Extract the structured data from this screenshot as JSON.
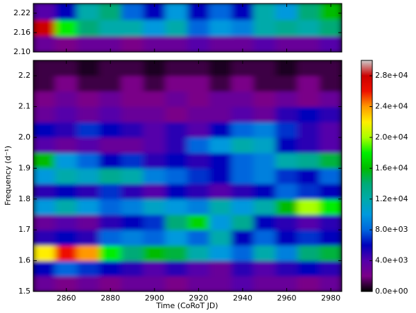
{
  "chart_data": {
    "type": "heatmap",
    "xlabel": "Time (CoRoT JD)",
    "ylabel": "Frequency (d⁻¹)",
    "x": [
      2850,
      2860,
      2870,
      2880,
      2890,
      2900,
      2910,
      2920,
      2930,
      2940,
      2950,
      2960,
      2970,
      2980
    ],
    "xlim": [
      2845,
      2985
    ],
    "xticks": [
      2860,
      2880,
      2900,
      2920,
      2940,
      2960,
      2980
    ],
    "colormap": [
      "#000000",
      "#7a0088",
      "#5500aa",
      "#0000bb",
      "#0066dd",
      "#0099dd",
      "#00aaaa",
      "#00aa77",
      "#00bb00",
      "#00ee00",
      "#aaff00",
      "#ffee00",
      "#ff9900",
      "#ee1100",
      "#cc0000",
      "#cccccc"
    ],
    "clim": [
      0,
      30000
    ],
    "cticks": [
      {
        "value": 0,
        "label": "0.0e+00"
      },
      {
        "value": 4000,
        "label": "4.0e+03"
      },
      {
        "value": 8000,
        "label": "8.0e+03"
      },
      {
        "value": 12000,
        "label": "1.2e+04"
      },
      {
        "value": 16000,
        "label": "1.6e+04"
      },
      {
        "value": 20000,
        "label": "2.0e+04"
      },
      {
        "value": 24000,
        "label": "2.4e+04"
      },
      {
        "value": 28000,
        "label": "2.8e+04"
      }
    ],
    "panels": [
      {
        "ylim": [
          2.1,
          2.25
        ],
        "yticks": [
          {
            "value": 2.1,
            "label": "2.10"
          },
          2.16,
          2.22
        ],
        "y": [
          2.125,
          2.175,
          2.225
        ],
        "values": [
          [
            3000,
            2000,
            3000,
            3000,
            2000,
            3000,
            3000,
            4000,
            3000,
            3000,
            4000,
            3000,
            3000,
            4000
          ],
          [
            28000,
            18000,
            14000,
            12000,
            12000,
            10000,
            12000,
            8000,
            10000,
            9000,
            12000,
            13000,
            12000,
            14000
          ],
          [
            4000,
            6000,
            12000,
            14000,
            8000,
            6000,
            10000,
            6000,
            8000,
            6000,
            12000,
            10000,
            14000,
            16000
          ]
        ]
      },
      {
        "ylim": [
          1.5,
          2.25
        ],
        "yticks": [
          1.5,
          1.6,
          1.7,
          1.8,
          1.9,
          {
            "value": 2,
            "label": "2.0"
          },
          2.1,
          2.2
        ],
        "y": [
          1.525,
          1.575,
          1.625,
          1.675,
          1.725,
          1.775,
          1.825,
          1.875,
          1.925,
          1.975,
          2.025,
          2.075,
          2.125,
          2.175,
          2.225
        ],
        "values": [
          [
            3000,
            2000,
            3000,
            2000,
            3000,
            3000,
            2000,
            3000,
            3000,
            4000,
            3000,
            3000,
            2000,
            3000
          ],
          [
            6000,
            8000,
            7000,
            6000,
            5000,
            4000,
            5000,
            4000,
            3000,
            5000,
            4000,
            5000,
            6000,
            5000
          ],
          [
            22000,
            26000,
            24000,
            18000,
            14000,
            16000,
            15000,
            12000,
            10000,
            8000,
            12000,
            9000,
            14000,
            15000
          ],
          [
            5000,
            6000,
            5000,
            8000,
            9000,
            8000,
            10000,
            8000,
            12000,
            6000,
            8000,
            6000,
            7000,
            6000
          ],
          [
            3000,
            4000,
            3000,
            5000,
            6000,
            7000,
            14000,
            17000,
            10000,
            13000,
            6000,
            5000,
            4000,
            5000
          ],
          [
            10000,
            12000,
            10000,
            8000,
            9000,
            11000,
            10000,
            9000,
            12000,
            10000,
            12000,
            16000,
            20000,
            18000
          ],
          [
            5000,
            6000,
            5000,
            7000,
            5000,
            4000,
            6000,
            5000,
            4000,
            5000,
            6000,
            8000,
            7000,
            6000
          ],
          [
            10000,
            12000,
            11000,
            13000,
            12000,
            9000,
            8000,
            7000,
            6000,
            8000,
            9000,
            7000,
            6000,
            8000
          ],
          [
            16000,
            10000,
            8000,
            6000,
            7000,
            5000,
            6000,
            5000,
            6000,
            8000,
            9000,
            12000,
            13000,
            15000
          ],
          [
            4000,
            3000,
            4000,
            3000,
            3000,
            4000,
            5000,
            8000,
            10000,
            12000,
            11000,
            6000,
            5000,
            4000
          ],
          [
            6000,
            5000,
            7000,
            6000,
            5000,
            4000,
            5000,
            4000,
            6000,
            8000,
            9000,
            7000,
            5000,
            4000
          ],
          [
            3000,
            4000,
            3000,
            4000,
            3000,
            3000,
            2000,
            3000,
            3000,
            4000,
            3000,
            5000,
            6000,
            5000
          ],
          [
            2000,
            3000,
            2000,
            3000,
            2000,
            2000,
            3000,
            2000,
            3000,
            3000,
            2000,
            3000,
            2000,
            3000
          ],
          [
            1000,
            2000,
            1000,
            1000,
            2000,
            1000,
            2000,
            2000,
            1000,
            2000,
            1000,
            1000,
            2000,
            1000
          ],
          [
            1000,
            1000,
            500,
            1000,
            1000,
            500,
            1000,
            1000,
            500,
            1000,
            1000,
            500,
            1000,
            1000
          ]
        ]
      }
    ]
  }
}
